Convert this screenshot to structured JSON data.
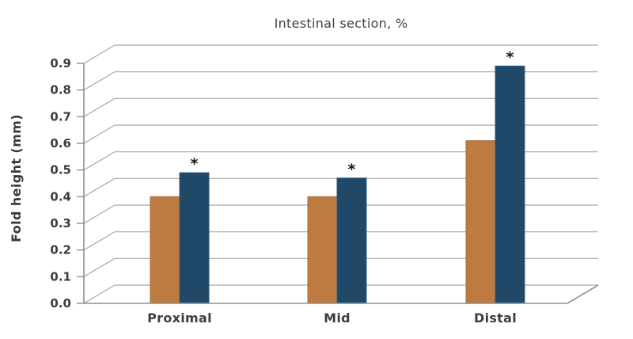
{
  "window": {
    "background": "#ffffff"
  },
  "chart_data": {
    "type": "bar",
    "style": "pseudo-3d-grouped-bars",
    "title": "Intestinal section, %",
    "xlabel": "",
    "ylabel": "Fold height (mm)",
    "categories": [
      "Proximal",
      "Mid",
      "Distal"
    ],
    "series": [
      {
        "name": "brown-bars",
        "color": "#bd7a41",
        "values": [
          0.4,
          0.4,
          0.61
        ]
      },
      {
        "name": "navy-bars",
        "color": "#1f4869",
        "values": [
          0.49,
          0.47,
          0.89
        ]
      }
    ],
    "significance": {
      "marker": "*",
      "on_series": "navy-bars",
      "categories": [
        "Proximal",
        "Mid",
        "Distal"
      ]
    },
    "ylim": [
      0.0,
      0.9
    ],
    "ytick_labels": [
      "0.0",
      "0.1",
      "0.2",
      "0.3",
      "0.4",
      "0.5",
      "0.6",
      "0.7",
      "0.8",
      "0.9"
    ],
    "grid": true,
    "legend": false
  },
  "colors": {
    "grid": "#a7a7a7",
    "axis": "#8f8f8f",
    "text": "#3d3d3d",
    "bar_brown": "#bd7a41",
    "bar_brown_stroke": "#aa6c36",
    "bar_navy": "#1f4869",
    "bar_navy_stroke": "#2f5d84",
    "marker": "#141414"
  }
}
